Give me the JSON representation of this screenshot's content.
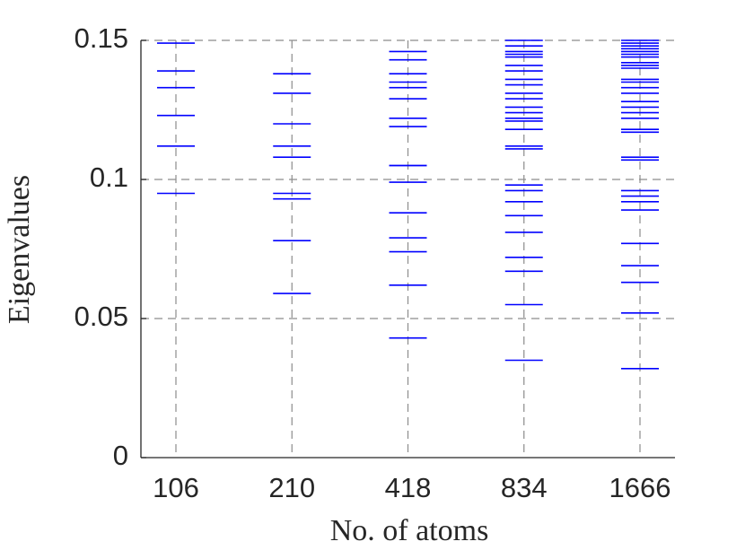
{
  "chart_data": {
    "type": "eigenvalue-strip",
    "xlabel": "No. of atoms",
    "ylabel": "Eigenvalues",
    "categories": [
      "106",
      "210",
      "418",
      "834",
      "1666"
    ],
    "values": [
      [
        0.149,
        0.139,
        0.133,
        0.123,
        0.112,
        0.095
      ],
      [
        0.138,
        0.131,
        0.12,
        0.112,
        0.108,
        0.095,
        0.093,
        0.078,
        0.059
      ],
      [
        0.146,
        0.143,
        0.138,
        0.135,
        0.133,
        0.129,
        0.122,
        0.119,
        0.105,
        0.105,
        0.099,
        0.088,
        0.079,
        0.074,
        0.062,
        0.043
      ],
      [
        0.15,
        0.148,
        0.146,
        0.145,
        0.144,
        0.141,
        0.139,
        0.136,
        0.134,
        0.131,
        0.129,
        0.126,
        0.124,
        0.122,
        0.121,
        0.118,
        0.112,
        0.111,
        0.098,
        0.096,
        0.092,
        0.087,
        0.081,
        0.072,
        0.067,
        0.055,
        0.035
      ],
      [
        0.15,
        0.149,
        0.148,
        0.147,
        0.146,
        0.145,
        0.144,
        0.142,
        0.141,
        0.14,
        0.136,
        0.135,
        0.133,
        0.131,
        0.128,
        0.126,
        0.124,
        0.122,
        0.118,
        0.117,
        0.108,
        0.107,
        0.096,
        0.094,
        0.092,
        0.089,
        0.077,
        0.069,
        0.063,
        0.052,
        0.032
      ]
    ],
    "color": "#0000ff",
    "ylim": [
      0,
      0.15
    ],
    "yticks": [
      0,
      0.05,
      0.1,
      0.15
    ],
    "grid": true
  }
}
